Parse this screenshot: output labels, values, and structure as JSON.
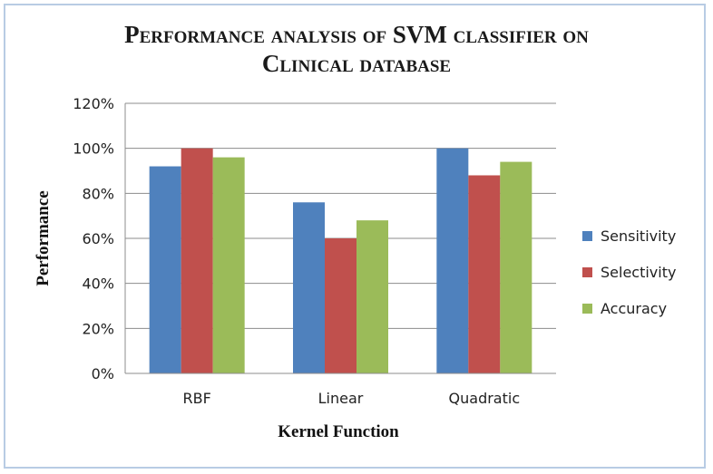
{
  "chart_data": {
    "type": "bar",
    "title_line1": "Performance analysis of SVM classifier on",
    "title_line2": "Clinical database",
    "xlabel": "Kernel Function",
    "ylabel": "Performance",
    "categories": [
      "RBF",
      "Linear",
      "Quadratic"
    ],
    "y_ticks": [
      "0%",
      "20%",
      "40%",
      "60%",
      "80%",
      "100%",
      "120%"
    ],
    "ylim": [
      0,
      120
    ],
    "grid": "horizontal",
    "legend_position": "right",
    "series": [
      {
        "name": "Sensitivity",
        "values": [
          92,
          76,
          100
        ],
        "color": "#4f81bd"
      },
      {
        "name": "Selectivity",
        "values": [
          100,
          60,
          88
        ],
        "color": "#c0504d"
      },
      {
        "name": "Accuracy",
        "values": [
          96,
          68,
          94
        ],
        "color": "#9bbb59"
      }
    ]
  }
}
